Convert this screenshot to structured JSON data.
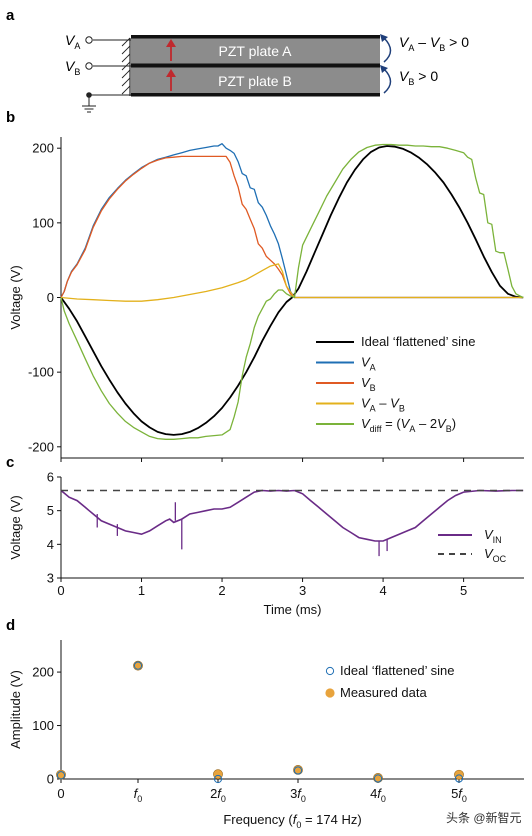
{
  "panels": {
    "a": "a",
    "b": "b",
    "c": "c",
    "d": "d"
  },
  "schematic": {
    "va_label": "V",
    "va_sub": "A",
    "vb_label": "V",
    "vb_sub": "B",
    "plate_a": "PZT plate A",
    "plate_b": "PZT plate B",
    "rel1_v1": "V",
    "rel1_s1": "A",
    "rel1_mid": " – ",
    "rel1_v2": "V",
    "rel1_s2": "B",
    "rel1_tail": " > 0",
    "rel2_v": "V",
    "rel2_s": "B",
    "rel2_tail": " > 0",
    "colors": {
      "plate": "#8c8c8c",
      "border": "#111111",
      "arrow": "#c0282d",
      "curve_arrow": "#1f3f7a"
    }
  },
  "chart_data": [
    {
      "id": "b",
      "type": "line",
      "ylabel": "Voltage (V)",
      "xlim": [
        0,
        5.75
      ],
      "ylim": [
        -215,
        215
      ],
      "yticks": [
        -200,
        -100,
        0,
        100,
        200
      ],
      "grid": false,
      "legend_position": "bottom-right",
      "series": [
        {
          "name": "Ideal ‘flattened’ sine",
          "color": "#000000",
          "width": 1.8,
          "x": [
            0,
            0.1,
            0.2,
            0.3,
            0.4,
            0.5,
            0.6,
            0.7,
            0.8,
            0.9,
            1.0,
            1.1,
            1.2,
            1.3,
            1.4,
            1.5,
            1.6,
            1.7,
            1.8,
            1.9,
            2.0,
            2.1,
            2.2,
            2.3,
            2.4,
            2.5,
            2.6,
            2.7,
            2.8,
            2.87,
            2.95,
            3.05,
            3.15,
            3.25,
            3.35,
            3.45,
            3.55,
            3.65,
            3.75,
            3.85,
            3.95,
            4.05,
            4.15,
            4.25,
            4.35,
            4.45,
            4.55,
            4.65,
            4.75,
            4.85,
            4.95,
            5.05,
            5.15,
            5.25,
            5.35,
            5.45,
            5.55,
            5.65,
            5.74
          ],
          "y": [
            0,
            -15,
            -32,
            -52,
            -72,
            -92,
            -110,
            -127,
            -142,
            -155,
            -166,
            -174,
            -180,
            -183,
            -184,
            -183,
            -180,
            -175,
            -168,
            -159,
            -148,
            -134,
            -118,
            -100,
            -80,
            -58,
            -38,
            -20,
            -6,
            0,
            12,
            35,
            60,
            85,
            110,
            133,
            154,
            171,
            185,
            195,
            201,
            203,
            202,
            199,
            194,
            187,
            178,
            167,
            154,
            138,
            120,
            100,
            78,
            55,
            34,
            16,
            5,
            1,
            0
          ]
        },
        {
          "name": "V_A",
          "color": "#1f6fb4",
          "width": 1.3,
          "x": [
            0,
            0.04,
            0.08,
            0.13,
            0.2,
            0.3,
            0.4,
            0.5,
            0.6,
            0.7,
            0.8,
            0.9,
            1.0,
            1.1,
            1.2,
            1.3,
            1.4,
            1.5,
            1.6,
            1.7,
            1.8,
            1.9,
            1.95,
            2.0,
            2.05,
            2.1,
            2.15,
            2.2,
            2.25,
            2.3,
            2.35,
            2.4,
            2.45,
            2.5,
            2.55,
            2.6,
            2.65,
            2.7,
            2.75,
            2.8,
            2.85,
            2.9,
            3.0,
            3.5,
            4.0,
            4.5,
            5.0,
            5.5,
            5.74
          ],
          "y": [
            0,
            8,
            22,
            35,
            45,
            66,
            96,
            118,
            134,
            146,
            157,
            166,
            174,
            180,
            185,
            188,
            191,
            194,
            197,
            199,
            201,
            203,
            203,
            206,
            200,
            197,
            193,
            182,
            166,
            163,
            147,
            145,
            127,
            121,
            110,
            96,
            85,
            72,
            52,
            30,
            8,
            0,
            0,
            0,
            0,
            0,
            0,
            0,
            0
          ]
        },
        {
          "name": "V_B",
          "color": "#e05a24",
          "width": 1.3,
          "x": [
            0,
            0.04,
            0.08,
            0.13,
            0.2,
            0.3,
            0.4,
            0.5,
            0.6,
            0.7,
            0.8,
            0.9,
            1.0,
            1.1,
            1.2,
            1.3,
            1.4,
            1.5,
            1.6,
            1.7,
            1.8,
            1.9,
            2.0,
            2.05,
            2.1,
            2.15,
            2.2,
            2.25,
            2.3,
            2.35,
            2.4,
            2.45,
            2.5,
            2.55,
            2.6,
            2.65,
            2.7,
            2.75,
            2.8,
            2.85,
            2.9,
            3.0,
            3.5,
            4.0,
            4.5,
            5.0,
            5.5,
            5.74
          ],
          "y": [
            0,
            8,
            22,
            34,
            44,
            64,
            94,
            116,
            132,
            145,
            156,
            165,
            173,
            180,
            184,
            187,
            188,
            189,
            189,
            189,
            189,
            189,
            189,
            189,
            181,
            163,
            148,
            125,
            118,
            105,
            92,
            72,
            66,
            55,
            50,
            45,
            38,
            30,
            15,
            5,
            0,
            0,
            0,
            0,
            0,
            0,
            0,
            0
          ]
        },
        {
          "name": "V_A – V_B",
          "color": "#e3b11c",
          "width": 1.3,
          "x": [
            0,
            0.2,
            0.4,
            0.6,
            0.8,
            1.0,
            1.2,
            1.4,
            1.6,
            1.8,
            2.0,
            2.2,
            2.3,
            2.4,
            2.5,
            2.6,
            2.7,
            2.75,
            2.8,
            2.9,
            3.0,
            3.5,
            4.0,
            4.5,
            5.0,
            5.5,
            5.74
          ],
          "y": [
            0,
            -2,
            -3,
            -4,
            -5,
            -5,
            -3,
            0,
            4,
            8,
            13,
            20,
            24,
            30,
            36,
            42,
            45,
            35,
            15,
            0,
            0,
            0,
            0,
            0,
            0,
            0,
            0
          ]
        },
        {
          "name": "V_diff = (V_A – 2V_B)",
          "color": "#7bb33a",
          "width": 1.3,
          "x": [
            0,
            0.04,
            0.1,
            0.2,
            0.3,
            0.4,
            0.5,
            0.6,
            0.7,
            0.8,
            0.9,
            1.0,
            1.1,
            1.2,
            1.3,
            1.4,
            1.5,
            1.6,
            1.7,
            1.8,
            1.9,
            2.0,
            2.1,
            2.15,
            2.2,
            2.25,
            2.3,
            2.35,
            2.4,
            2.45,
            2.5,
            2.55,
            2.6,
            2.65,
            2.7,
            2.75,
            2.8,
            2.85,
            2.9,
            2.95,
            3.0,
            3.1,
            3.2,
            3.3,
            3.4,
            3.5,
            3.6,
            3.7,
            3.8,
            3.9,
            4.0,
            4.1,
            4.2,
            4.3,
            4.4,
            4.5,
            4.6,
            4.7,
            4.8,
            4.9,
            5.0,
            5.05,
            5.1,
            5.15,
            5.2,
            5.25,
            5.3,
            5.35,
            5.4,
            5.45,
            5.5,
            5.55,
            5.6,
            5.65,
            5.7,
            5.74
          ],
          "y": [
            0,
            -18,
            -35,
            -58,
            -82,
            -105,
            -125,
            -142,
            -155,
            -166,
            -174,
            -180,
            -186,
            -189,
            -190,
            -190,
            -189,
            -188,
            -188,
            -186,
            -185,
            -184,
            -177,
            -160,
            -140,
            -105,
            -80,
            -62,
            -40,
            -25,
            -15,
            -5,
            -2,
            5,
            10,
            10,
            5,
            2,
            0,
            40,
            70,
            92,
            114,
            136,
            154,
            172,
            185,
            195,
            201,
            204,
            205,
            205,
            204,
            204,
            203,
            203,
            202,
            202,
            200,
            197,
            194,
            188,
            185,
            160,
            140,
            138,
            100,
            98,
            62,
            60,
            60,
            38,
            15,
            5,
            2,
            0
          ]
        }
      ]
    },
    {
      "id": "c",
      "type": "line",
      "xlabel": "Time (ms)",
      "ylabel": "Voltage (V)",
      "xlim": [
        0,
        5.75
      ],
      "ylim": [
        3,
        6
      ],
      "yticks": [
        3,
        4,
        5,
        6
      ],
      "xticks": [
        0,
        1,
        2,
        3,
        4,
        5
      ],
      "grid": false,
      "legend_position": "bottom-right",
      "series": [
        {
          "name": "V_IN",
          "color": "#6a2b87",
          "width": 1.6,
          "x": [
            0,
            0.05,
            0.1,
            0.2,
            0.3,
            0.35,
            0.4,
            0.5,
            0.6,
            0.7,
            0.8,
            0.9,
            1.0,
            1.1,
            1.2,
            1.3,
            1.35,
            1.4,
            1.5,
            1.6,
            1.7,
            1.8,
            1.9,
            2.0,
            2.1,
            2.2,
            2.3,
            2.4,
            2.5,
            2.6,
            2.7,
            2.8,
            2.9,
            3.0,
            3.1,
            3.2,
            3.3,
            3.4,
            3.5,
            3.6,
            3.7,
            3.8,
            3.9,
            4.0,
            4.1,
            4.2,
            4.3,
            4.4,
            4.5,
            4.6,
            4.7,
            4.8,
            4.9,
            5.0,
            5.2,
            5.4,
            5.6,
            5.74
          ],
          "y": [
            5.6,
            5.5,
            5.4,
            5.3,
            5.1,
            5.0,
            4.9,
            4.7,
            4.6,
            4.5,
            4.4,
            4.35,
            4.3,
            4.4,
            4.55,
            4.7,
            4.75,
            4.65,
            4.75,
            4.9,
            4.95,
            5.0,
            5.05,
            5.05,
            5.1,
            5.25,
            5.4,
            5.55,
            5.6,
            5.58,
            5.6,
            5.58,
            5.6,
            5.5,
            5.3,
            5.1,
            4.9,
            4.7,
            4.5,
            4.35,
            4.2,
            4.15,
            4.1,
            4.1,
            4.2,
            4.3,
            4.4,
            4.5,
            4.7,
            4.9,
            5.1,
            5.3,
            5.45,
            5.55,
            5.6,
            5.58,
            5.6,
            5.6
          ]
        },
        {
          "name": "V_OC",
          "color": "#444444",
          "width": 1.4,
          "dash": "7,6",
          "x": [
            0,
            5.74
          ],
          "y": [
            5.6,
            5.6
          ]
        }
      ]
    },
    {
      "id": "d",
      "type": "scatter",
      "xlabel": "Frequency (f0 = 174 Hz)",
      "ylabel": "Amplitude (V)",
      "ylim": [
        0,
        260
      ],
      "yticks": [
        0,
        100,
        200
      ],
      "categories": [
        "0",
        "f0",
        "2f0",
        "3f0",
        "4f0",
        "5f0"
      ],
      "grid": false,
      "legend_position": "top-right",
      "series": [
        {
          "name": "Ideal ‘flattened’ sine",
          "color": "#1f6fb4",
          "marker": "open-circle",
          "values": [
            7,
            212,
            0,
            16,
            1,
            1
          ]
        },
        {
          "name": "Measured data",
          "color": "#e8a33c",
          "marker": "filled-circle",
          "values": [
            8,
            212,
            9,
            17,
            2,
            8
          ]
        }
      ]
    }
  ],
  "legends": {
    "b": [
      {
        "text": "Ideal ‘flattened’ sine",
        "sym": "",
        "sub": "",
        "tail": ""
      },
      {
        "text": "V",
        "sym": "",
        "sub": "A",
        "tail": ""
      },
      {
        "text": "V",
        "sym": "",
        "sub": "B",
        "tail": ""
      },
      {
        "text": "V",
        "sub": "A",
        "tail": " – V",
        "sub2": "B",
        "tail2": ""
      },
      {
        "text": "V",
        "sub": "diff",
        "tail": " = (V",
        "sub2": "A",
        "tail2": " – 2V",
        "sub3": "B",
        "tail3": ")"
      }
    ],
    "c": [
      {
        "text": "V",
        "sub": "IN"
      },
      {
        "text": "V",
        "sub": "OC"
      }
    ],
    "d": [
      {
        "text": "Ideal ‘flattened’ sine"
      },
      {
        "text": "Measured data"
      }
    ]
  },
  "axis_labels": {
    "b_y": "Voltage (V)",
    "c_y": "Voltage (V)",
    "c_x": "Time (ms)",
    "d_y": "Amplitude (V)",
    "d_x_pre": "Frequency (",
    "d_x_f": "f",
    "d_x_sub": "0",
    "d_x_post": " = 174 Hz)"
  },
  "xtick_labels_c": [
    "0",
    "1",
    "2",
    "3",
    "4",
    "5"
  ],
  "xtick_labels_d": [
    {
      "pre": "0",
      "f": "",
      "sub": ""
    },
    {
      "pre": "",
      "f": "f",
      "sub": "0"
    },
    {
      "pre": "2",
      "f": "f",
      "sub": "0"
    },
    {
      "pre": "3",
      "f": "f",
      "sub": "0"
    },
    {
      "pre": "4",
      "f": "f",
      "sub": "0"
    },
    {
      "pre": "5",
      "f": "f",
      "sub": "0"
    }
  ],
  "watermark": "头条 @新智元"
}
